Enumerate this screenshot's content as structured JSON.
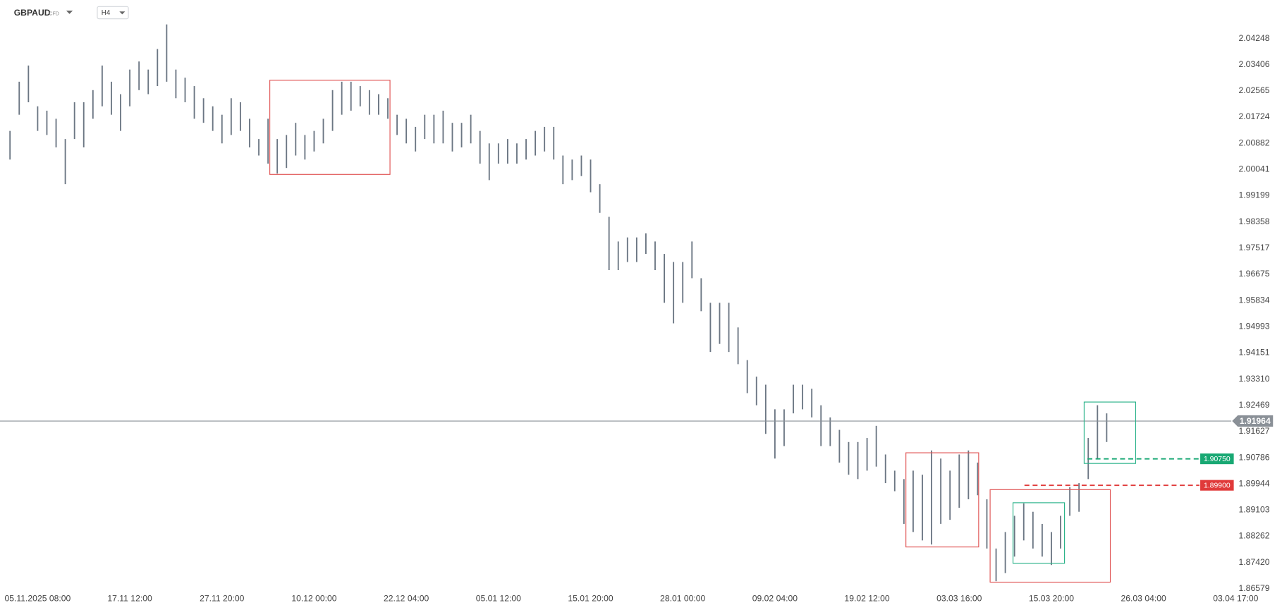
{
  "chart_data": {
    "type": "ohlc",
    "title": "GBPAUD",
    "subtitle": "CFD",
    "timeframe": "H4",
    "color": "#6b7683",
    "categories": [
      null,
      null,
      null,
      "05.11.2025  08:00",
      null,
      null,
      null,
      null,
      null,
      null,
      null,
      null,
      null,
      "17.11  12:00",
      null,
      null,
      null,
      null,
      null,
      null,
      null,
      null,
      null,
      "27.11  20:00",
      null,
      null,
      null,
      null,
      null,
      null,
      null,
      null,
      null,
      "10.12  00:00",
      null,
      null,
      null,
      null,
      null,
      null,
      null,
      null,
      null,
      "22.12  04:00",
      null,
      null,
      null,
      null,
      null,
      null,
      null,
      null,
      null,
      "05.01  12:00",
      null,
      null,
      null,
      null,
      null,
      null,
      null,
      null,
      null,
      "15.01  20:00",
      null,
      null,
      null,
      null,
      null,
      null,
      null,
      null,
      null,
      "28.01  00:00",
      null,
      null,
      null,
      null,
      null,
      null,
      null,
      null,
      null,
      "09.02  04:00",
      null,
      null,
      null,
      null,
      null,
      null,
      null,
      null,
      null,
      "19.02  12:00",
      null,
      null,
      null,
      null,
      null,
      null,
      null,
      null,
      null,
      "03.03  16:00",
      null,
      null,
      null,
      null,
      null,
      null,
      null,
      null,
      null,
      "15.03  20:00",
      null,
      null,
      null,
      null,
      null,
      null,
      null,
      null,
      null,
      "26.03  04:00",
      null,
      null,
      null,
      null,
      null,
      null,
      null,
      null,
      null,
      "03.04  17:00"
    ],
    "high": [
      2.0128,
      2.0286,
      2.0338,
      2.0207,
      2.0193,
      2.0167,
      2.0102,
      2.022,
      2.022,
      2.0259,
      2.0338,
      2.0286,
      2.0246,
      2.0325,
      2.0351,
      2.0325,
      2.0391,
      2.047,
      2.0325,
      2.0299,
      2.0272,
      2.0233,
      2.0207,
      2.018,
      2.0233,
      2.022,
      2.0167,
      2.0102,
      2.0167,
      2.0102,
      2.0115,
      2.0154,
      2.0115,
      2.0128,
      2.0167,
      2.0259,
      2.0286,
      2.0286,
      2.0272,
      2.0259,
      2.0246,
      2.0233,
      2.018,
      2.0167,
      2.0141,
      2.018,
      2.018,
      2.0193,
      2.0154,
      2.0154,
      2.018,
      2.0128,
      2.0088,
      2.0088,
      2.0102,
      2.0088,
      2.0102,
      2.0128,
      2.0141,
      2.0141,
      2.0049,
      2.0036,
      2.0049,
      2.0036,
      1.9957,
      1.9852,
      1.9773,
      1.9786,
      1.9786,
      1.9799,
      1.9773,
      1.9733,
      1.9707,
      1.9707,
      1.9773,
      1.9655,
      1.9576,
      1.9576,
      1.9576,
      1.9497,
      1.9392,
      1.9339,
      1.9313,
      1.9234,
      1.9234,
      1.9313,
      1.9313,
      1.93,
      1.9247,
      1.9208,
      1.9168,
      1.9129,
      1.9129,
      1.9142,
      1.9181,
      1.9089,
      1.9037,
      1.901,
      1.9037,
      1.9024,
      1.9102,
      1.9076,
      1.9037,
      1.9089,
      1.9102,
      1.9063,
      1.8945,
      1.8787,
      1.884,
      1.8892,
      1.8932,
      1.8905,
      1.8866,
      1.884,
      1.8892,
      1.8984,
      1.8997,
      1.9142,
      1.9247,
      1.9221,
      null,
      null,
      null,
      null,
      null,
      null,
      null,
      null,
      null,
      null,
      null,
      null,
      null,
      null
    ],
    "low": [
      2.0036,
      2.018,
      2.022,
      2.0128,
      2.0115,
      2.0075,
      1.9957,
      2.0102,
      2.0075,
      2.0167,
      2.0207,
      2.018,
      2.0128,
      2.0207,
      2.0259,
      2.0246,
      2.0272,
      2.0286,
      2.0233,
      2.022,
      2.0167,
      2.0154,
      2.0128,
      2.0088,
      2.0115,
      2.0128,
      2.0075,
      2.0049,
      2.0023,
      1.9991,
      2.0009,
      2.0049,
      2.0036,
      2.0062,
      2.0088,
      2.0128,
      2.018,
      2.0193,
      2.0207,
      2.018,
      2.018,
      2.0167,
      2.0115,
      2.0088,
      2.0062,
      2.0102,
      2.0088,
      2.0088,
      2.0062,
      2.0075,
      2.0088,
      2.0023,
      1.997,
      2.0023,
      2.0023,
      2.0023,
      2.0036,
      2.0049,
      2.0062,
      2.0036,
      1.9957,
      1.997,
      1.9983,
      1.9931,
      1.9865,
      1.9681,
      1.9681,
      1.9707,
      1.9707,
      1.9733,
      1.9681,
      1.9576,
      1.951,
      1.9576,
      1.9655,
      1.9549,
      1.9418,
      1.9444,
      1.9418,
      1.9379,
      1.9286,
      1.9247,
      1.9155,
      1.9076,
      1.9116,
      1.9221,
      1.9234,
      1.9208,
      1.9116,
      1.9116,
      1.9063,
      1.9024,
      1.901,
      1.9037,
      1.905,
      1.8997,
      1.8971,
      1.8866,
      1.884,
      1.8813,
      1.88,
      1.8866,
      1.8879,
      1.8918,
      1.8945,
      1.8958,
      1.8787,
      1.8682,
      1.8708,
      1.8761,
      1.8813,
      1.8787,
      1.8761,
      1.8734,
      1.8787,
      1.8892,
      1.8905,
      1.901,
      1.9076,
      1.9129,
      null,
      null,
      null,
      null,
      null,
      null,
      null,
      null,
      null,
      null,
      null,
      null,
      null,
      null
    ],
    "ylim": [
      1.8629,
      2.05484
    ],
    "yticks": [
      2.04248,
      2.03406,
      2.02565,
      2.01724,
      2.00882,
      2.00041,
      1.99199,
      1.98358,
      1.97517,
      1.96675,
      1.95834,
      1.94993,
      1.94151,
      {
        "value": 1.9331,
        "label": "1.93310"
      },
      1.92469,
      1.91627,
      1.90786,
      1.89944,
      1.89103,
      1.88262,
      {
        "value": 1.8742,
        "label": "1.87420"
      },
      1.86579
    ],
    "levels": [
      {
        "value": 1.91964,
        "color": "#8a9097",
        "dashed": false
      },
      {
        "value": 1.9075,
        "label": "1.90750",
        "color": "#18a873",
        "dashed": true
      },
      {
        "value": 1.899,
        "label": "1.89900",
        "color": "#e03a3a",
        "dashed": true
      }
    ]
  }
}
